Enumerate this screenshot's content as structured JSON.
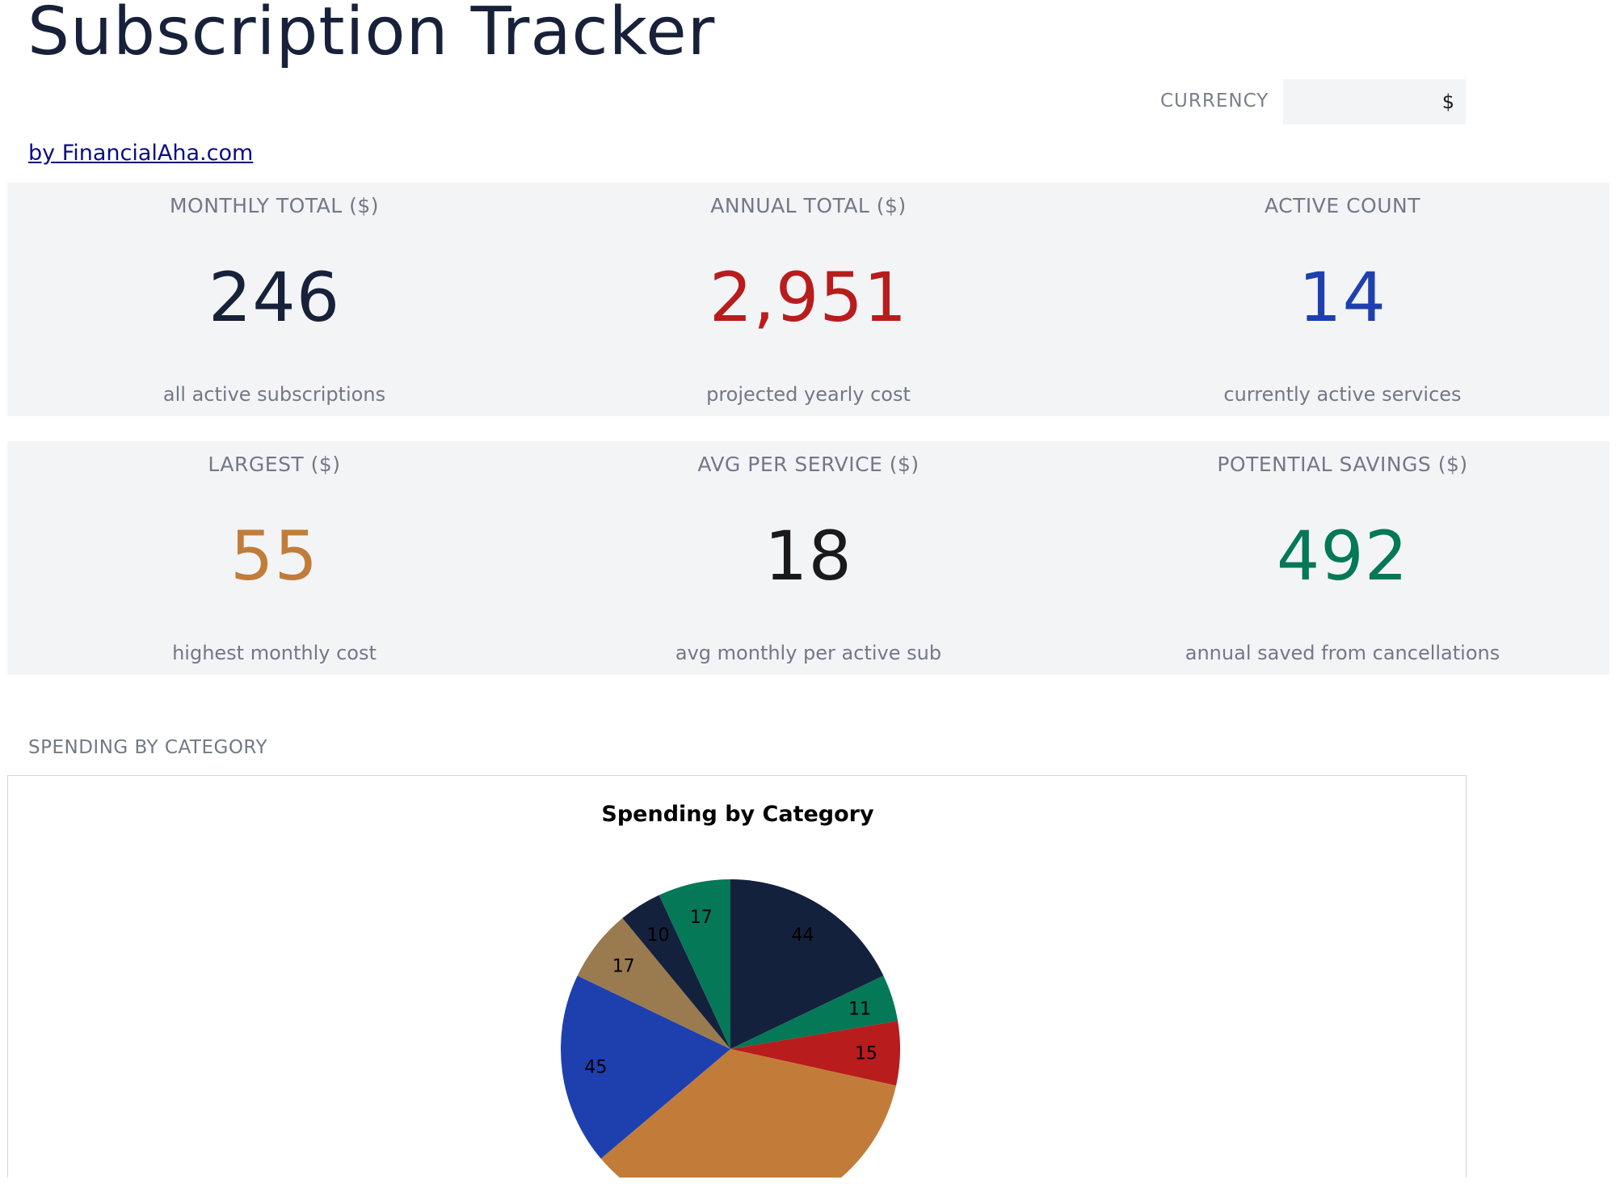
{
  "header": {
    "title": "Subscription Tracker",
    "currency_label": "CURRENCY",
    "currency_value": "$",
    "byline": "by FinancialAha.com"
  },
  "kpis_row1": [
    {
      "label": "MONTHLY TOTAL ($)",
      "value": "246",
      "sub": "all active subscriptions",
      "color": "#17213a"
    },
    {
      "label": "ANNUAL TOTAL ($)",
      "value": "2,951",
      "sub": "projected yearly cost",
      "color": "#b91c1c"
    },
    {
      "label": "ACTIVE COUNT",
      "value": "14",
      "sub": "currently active services",
      "color": "#1e40af"
    }
  ],
  "kpis_row2": [
    {
      "label": "LARGEST ($)",
      "value": "55",
      "sub": "highest monthly cost",
      "color": "#c27c3a"
    },
    {
      "label": "AVG PER SERVICE ($)",
      "value": "18",
      "sub": "avg monthly per active sub",
      "color": "#1a1a1a"
    },
    {
      "label": "POTENTIAL SAVINGS ($)",
      "value": "492",
      "sub": "annual saved from cancellations",
      "color": "#047857"
    }
  ],
  "section_label": "SPENDING BY CATEGORY",
  "chart_data": {
    "type": "pie",
    "title": "Spending by Category",
    "values": [
      44,
      11,
      15,
      87,
      45,
      17,
      10,
      17
    ],
    "labels": [
      "44",
      "11",
      "15",
      "",
      "45",
      "17",
      "10",
      "17"
    ],
    "colors": [
      "#14213d",
      "#047857",
      "#b91c1c",
      "#c27c3a",
      "#1e40af",
      "#9a7a4f",
      "#14213d",
      "#047857"
    ]
  }
}
